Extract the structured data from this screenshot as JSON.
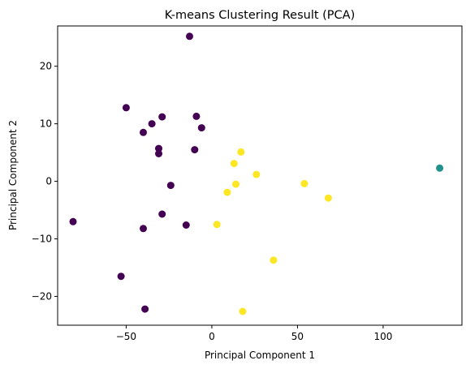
{
  "chart_data": {
    "type": "scatter",
    "title": "K-means Clustering Result (PCA)",
    "xlabel": "Principal Component 1",
    "ylabel": "Principal Component 2",
    "xlim": [
      -90,
      146
    ],
    "ylim": [
      -25,
      27
    ],
    "xticks": [
      -50,
      0,
      50,
      100
    ],
    "yticks": [
      -20,
      -10,
      0,
      10,
      20
    ],
    "xtick_labels": [
      "−50",
      "0",
      "50",
      "100"
    ],
    "ytick_labels": [
      "−20",
      "−10",
      "0",
      "10",
      "20"
    ],
    "grid": false,
    "legend": "none",
    "cluster_colors": [
      "#440154",
      "#21918c",
      "#fde725"
    ],
    "points": [
      {
        "x": -13,
        "y": 25.2,
        "cluster": 0
      },
      {
        "x": -50,
        "y": 12.8,
        "cluster": 0
      },
      {
        "x": -35,
        "y": 10.0,
        "cluster": 0
      },
      {
        "x": -40,
        "y": 8.5,
        "cluster": 0
      },
      {
        "x": -29,
        "y": 11.2,
        "cluster": 0
      },
      {
        "x": -9,
        "y": 11.3,
        "cluster": 0
      },
      {
        "x": -6,
        "y": 9.3,
        "cluster": 0
      },
      {
        "x": -31,
        "y": 5.7,
        "cluster": 0
      },
      {
        "x": -31,
        "y": 4.8,
        "cluster": 0
      },
      {
        "x": -10,
        "y": 5.5,
        "cluster": 0
      },
      {
        "x": -24,
        "y": -0.7,
        "cluster": 0
      },
      {
        "x": -81,
        "y": -7.0,
        "cluster": 0
      },
      {
        "x": -29,
        "y": -5.7,
        "cluster": 0
      },
      {
        "x": -15,
        "y": -7.6,
        "cluster": 0
      },
      {
        "x": -40,
        "y": -8.2,
        "cluster": 0
      },
      {
        "x": -53,
        "y": -16.5,
        "cluster": 0
      },
      {
        "x": -39,
        "y": -22.2,
        "cluster": 0
      },
      {
        "x": 133,
        "y": 2.3,
        "cluster": 1
      },
      {
        "x": 17,
        "y": 5.1,
        "cluster": 2
      },
      {
        "x": 13,
        "y": 3.1,
        "cluster": 2
      },
      {
        "x": 26,
        "y": 1.2,
        "cluster": 2
      },
      {
        "x": 14,
        "y": -0.5,
        "cluster": 2
      },
      {
        "x": 9,
        "y": -1.9,
        "cluster": 2
      },
      {
        "x": 54,
        "y": -0.4,
        "cluster": 2
      },
      {
        "x": 68,
        "y": -2.9,
        "cluster": 2
      },
      {
        "x": 3,
        "y": -7.5,
        "cluster": 2
      },
      {
        "x": 36,
        "y": -13.7,
        "cluster": 2
      },
      {
        "x": 18,
        "y": -22.6,
        "cluster": 2
      }
    ]
  }
}
